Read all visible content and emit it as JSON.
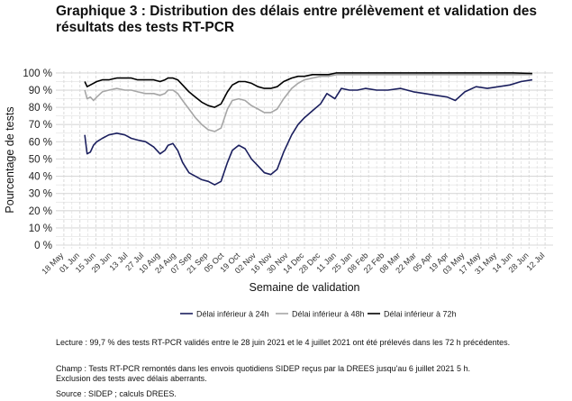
{
  "title": "Graphique 3 : Distribution des délais entre prélèvement et validation des résultats des tests RT-PCR",
  "notes": {
    "lecture": "Lecture : 99,7 % des tests RT-PCR validés entre le 28 juin 2021 et le 4 juillet 2021 ont été prélevés dans les 72 h précédentes.",
    "champ_line1": "Champ : Tests RT-PCR remontés dans les envois quotidiens SIDEP reçus par la DREES jusqu'au 6 juillet 2021 5 h.",
    "champ_line2": "Exclusion des tests avec délais aberrants.",
    "source": "Source : SIDEP ; calculs DREES."
  },
  "chart_data": {
    "type": "line",
    "xlabel": "Semaine de validation",
    "ylabel": "Pourcentage de tests",
    "ylim": [
      0,
      100
    ],
    "y_ticks": [
      "0 %",
      "10 %",
      "20 %",
      "30 %",
      "40 %",
      "50 %",
      "60 %",
      "70 %",
      "80 %",
      "90 %",
      "100 %"
    ],
    "x_ticks": [
      "18 May",
      "01 Jun",
      "15 Jun",
      "29 Jun",
      "13 Jul",
      "27 Jul",
      "10 Aug",
      "24 Aug",
      "07 Sep",
      "21 Sep",
      "05 Oct",
      "19 Oct",
      "02 Nov",
      "16 Nov",
      "30 Nov",
      "14 Dec",
      "28 Dec",
      "11 Jan",
      "25 Jan",
      "08 Feb",
      "22 Feb",
      "08 Mar",
      "22 Mar",
      "05 Apr",
      "19 Apr",
      "03 May",
      "17 May",
      "31 May",
      "14 Jun",
      "28 Jun",
      "12 Jul"
    ],
    "grid": true,
    "legend_position": "bottom",
    "colors": {
      "24h": "#1b1f5e",
      "48h": "#a6a6a6",
      "72h": "#000000",
      "grid": "#d9d9d9"
    },
    "x_unit": "weeks since 18 May 2020",
    "series": [
      {
        "name": "Délai inférieur à 24h",
        "x": [
          1.3,
          1.45,
          1.65,
          1.85,
          2.05,
          2.4,
          2.8,
          3.3,
          3.8,
          4.2,
          4.6,
          5.1,
          5.6,
          6.0,
          6.3,
          6.5,
          6.8,
          7.1,
          7.4,
          7.8,
          8.2,
          8.6,
          9.0,
          9.4,
          9.8,
          10.2,
          10.5,
          10.9,
          11.3,
          11.7,
          12.1,
          12.5,
          12.9,
          13.3,
          13.7,
          14.2,
          14.6,
          15.0,
          15.5,
          16.0,
          16.4,
          16.9,
          17.3,
          17.8,
          18.3,
          18.8,
          19.5,
          20.2,
          21.0,
          21.8,
          22.5,
          23.2,
          23.9,
          24.4,
          25.0,
          25.7,
          26.4,
          27.1,
          27.8,
          28.5,
          29.2
        ],
        "y": [
          64,
          53,
          54,
          58,
          60,
          62,
          64,
          65,
          64,
          62,
          61,
          60,
          57,
          53,
          55,
          58,
          59,
          55,
          48,
          42,
          40,
          38,
          37,
          35,
          37,
          48,
          55,
          58,
          56,
          50,
          46,
          42,
          41,
          44,
          54,
          64,
          70,
          74,
          78,
          82,
          88,
          85,
          91,
          90,
          90,
          91,
          90,
          90,
          91,
          89,
          88,
          87,
          86,
          84,
          89,
          92,
          91,
          92,
          93,
          95,
          96
        ]
      },
      {
        "name": "Délai inférieur à 48h",
        "x": [
          1.3,
          1.45,
          1.65,
          1.85,
          2.05,
          2.4,
          2.8,
          3.3,
          3.8,
          4.2,
          4.6,
          5.1,
          5.6,
          6.0,
          6.3,
          6.5,
          6.8,
          7.1,
          7.4,
          7.8,
          8.2,
          8.6,
          9.0,
          9.4,
          9.8,
          10.2,
          10.5,
          10.9,
          11.3,
          11.7,
          12.1,
          12.5,
          12.9,
          13.3,
          13.7,
          14.2,
          14.6,
          15.0,
          15.5,
          16.0,
          16.5,
          17.0,
          18.0,
          19.0,
          20.0,
          21.0,
          22.0,
          23.0,
          24.0,
          25.0,
          26.0,
          27.0,
          28.0,
          29.2
        ],
        "y": [
          90,
          85,
          86,
          84,
          86,
          89,
          90,
          91,
          90,
          90,
          89,
          88,
          88,
          87,
          88,
          90,
          90,
          88,
          84,
          79,
          74,
          70,
          67,
          66,
          68,
          79,
          84,
          85,
          84,
          81,
          79,
          77,
          77,
          79,
          85,
          91,
          94,
          96,
          97,
          98,
          98,
          99,
          99,
          99,
          99,
          99,
          99,
          99,
          99,
          99,
          99,
          99,
          99,
          99
        ]
      },
      {
        "name": "Délai inférieur à 72h",
        "x": [
          1.3,
          1.45,
          1.65,
          1.85,
          2.05,
          2.4,
          2.8,
          3.3,
          3.8,
          4.2,
          4.6,
          5.1,
          5.6,
          6.0,
          6.3,
          6.5,
          6.8,
          7.1,
          7.4,
          7.8,
          8.2,
          8.6,
          9.0,
          9.4,
          9.8,
          10.2,
          10.5,
          10.9,
          11.3,
          11.7,
          12.1,
          12.5,
          12.9,
          13.3,
          13.7,
          14.2,
          14.6,
          15.0,
          15.5,
          16.0,
          16.5,
          17.0,
          18.0,
          19.0,
          20.0,
          21.0,
          22.0,
          23.0,
          24.0,
          25.0,
          26.0,
          27.0,
          28.0,
          29.2
        ],
        "y": [
          95,
          92,
          93,
          94,
          95,
          96,
          96,
          97,
          97,
          97,
          96,
          96,
          96,
          95,
          96,
          97,
          97,
          96,
          93,
          89,
          86,
          83,
          81,
          80,
          82,
          89,
          93,
          95,
          95,
          94,
          92,
          91,
          91,
          92,
          95,
          97,
          98,
          98,
          99,
          99,
          99,
          100,
          100,
          100,
          100,
          100,
          100,
          100,
          100,
          100,
          100,
          100,
          100,
          99.7
        ]
      }
    ]
  }
}
